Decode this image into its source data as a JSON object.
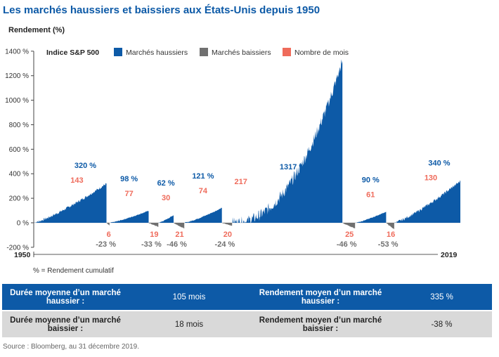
{
  "title": "Les marchés haussiers et baissiers aux États-Unis depuis 1950",
  "note": "% = Rendement cumulatif",
  "source": "Source : Bloomberg, au 31 décembre 2019.",
  "colors": {
    "bull": "#0d5aa7",
    "bear": "#707070",
    "months": "#ef6b5b",
    "title": "#0d5aa7"
  },
  "stats": {
    "bull_duration_label": "Durée moyenne d’un marché haussier :",
    "bull_duration_value": "105 mois",
    "bull_return_label": "Rendement moyen d’un marché haussier :",
    "bull_return_value": "335 %",
    "bear_duration_label": "Durée moyenne d’un marché baissier :",
    "bear_duration_value": "18 mois",
    "bear_return_label": "Rendement moyen d’un marché baissier :",
    "bear_return_value": "-38 %"
  },
  "chart_data": {
    "type": "area",
    "title": "Les marchés haussiers et baissiers aux États-Unis depuis 1950",
    "ylabel": "Rendement (%)",
    "ylim": [
      -200,
      1400
    ],
    "yticks": [
      -200,
      0,
      200,
      400,
      600,
      800,
      1000,
      1200,
      1400
    ],
    "ytick_labels": [
      "-200 %",
      "0 %",
      "200 %",
      "400 %",
      "600 %",
      "800 %",
      "1000 %",
      "1200 %",
      "1400 %"
    ],
    "x_start_label": "1950",
    "x_end_label": "2019",
    "legend_title": "Indice S&P 500",
    "legend": [
      "Marchés haussiers",
      "Marchés baissiers",
      "Nombre de mois"
    ],
    "legend_position": "top-left",
    "grid": false,
    "markets": [
      {
        "kind": "bull",
        "return": 320,
        "months": 143,
        "return_label": "320 %",
        "months_label": "143"
      },
      {
        "kind": "bear",
        "return": -23,
        "months": 6,
        "return_label": "-23 %",
        "months_label": "6"
      },
      {
        "kind": "bull",
        "return": 98,
        "months": 77,
        "return_label": "98 %",
        "months_label": "77"
      },
      {
        "kind": "bear",
        "return": -33,
        "months": 19,
        "return_label": "-33 %",
        "months_label": "19"
      },
      {
        "kind": "bull",
        "return": 62,
        "months": 30,
        "return_label": "62 %",
        "months_label": "30"
      },
      {
        "kind": "bear",
        "return": -46,
        "months": 21,
        "return_label": "-46 %",
        "months_label": "21"
      },
      {
        "kind": "bull",
        "return": 121,
        "months": 74,
        "return_label": "121 %",
        "months_label": "74"
      },
      {
        "kind": "bear",
        "return": -24,
        "months": 20,
        "return_label": "-24 %",
        "months_label": "20"
      },
      {
        "kind": "bull",
        "return": 1317,
        "months": 217,
        "return_label": "1317 %",
        "months_label": "217"
      },
      {
        "kind": "bear",
        "return": -46,
        "months": 25,
        "return_label": "-46 %",
        "months_label": "25"
      },
      {
        "kind": "bull",
        "return": 90,
        "months": 61,
        "return_label": "90 %",
        "months_label": "61"
      },
      {
        "kind": "bear",
        "return": -53,
        "months": 16,
        "return_label": "-53 %",
        "months_label": "16"
      },
      {
        "kind": "bull",
        "return": 340,
        "months": 130,
        "return_label": "340 %",
        "months_label": "130"
      }
    ]
  }
}
